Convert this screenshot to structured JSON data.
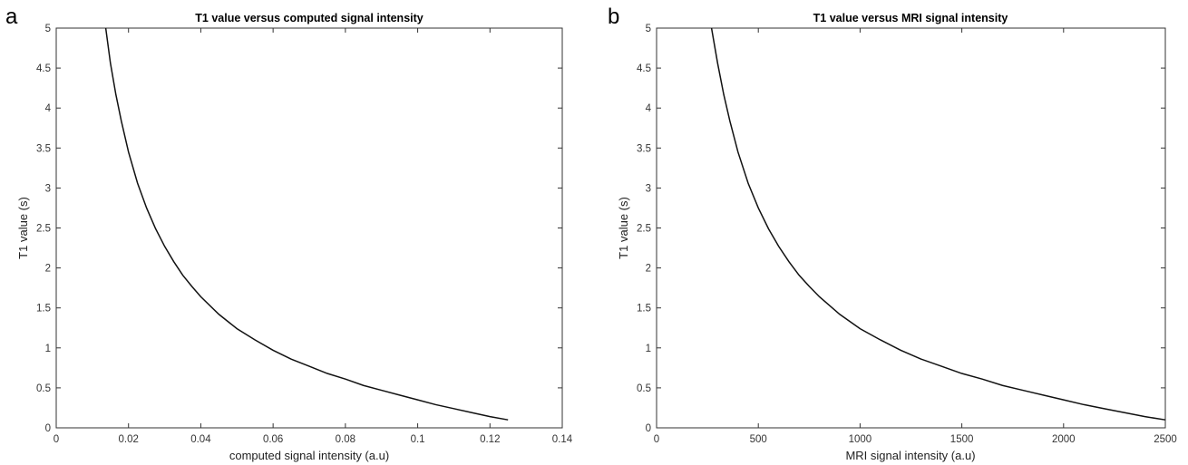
{
  "chart_data": [
    {
      "type": "line",
      "panel_label": "a",
      "title": "T1 value versus computed signal intensity",
      "xlabel": "computed signal intensity (a.u)",
      "ylabel": "T1 value (s)",
      "xlim": [
        0,
        0.14
      ],
      "ylim": [
        0,
        5
      ],
      "xticks": [
        0,
        0.02,
        0.04,
        0.06,
        0.08,
        0.1,
        0.12,
        0.14
      ],
      "xtick_labels": [
        "0",
        "0.02",
        "0.04",
        "0.06",
        "0.08",
        "0.1",
        "0.12",
        "0.14"
      ],
      "yticks": [
        0,
        0.5,
        1,
        1.5,
        2,
        2.5,
        3,
        3.5,
        4,
        4.5,
        5
      ],
      "ytick_labels": [
        "0",
        "0.5",
        "1",
        "1.5",
        "2",
        "2.5",
        "3",
        "3.5",
        "4",
        "4.5",
        "5"
      ],
      "grid": false,
      "line_color": "#111111",
      "series": [
        {
          "x": [
            0.0137,
            0.015,
            0.0165,
            0.018,
            0.02,
            0.0225,
            0.025,
            0.0275,
            0.03,
            0.0325,
            0.035,
            0.0375,
            0.04,
            0.045,
            0.05,
            0.055,
            0.06,
            0.065,
            0.07,
            0.075,
            0.08,
            0.085,
            0.09,
            0.095,
            0.1,
            0.105,
            0.11,
            0.115,
            0.12,
            0.125
          ],
          "y": [
            5.0,
            4.56,
            4.17,
            3.84,
            3.45,
            3.06,
            2.75,
            2.49,
            2.27,
            2.08,
            1.91,
            1.77,
            1.64,
            1.42,
            1.24,
            1.1,
            0.97,
            0.86,
            0.77,
            0.68,
            0.61,
            0.53,
            0.47,
            0.41,
            0.35,
            0.29,
            0.24,
            0.19,
            0.14,
            0.1
          ]
        }
      ]
    },
    {
      "type": "line",
      "panel_label": "b",
      "title": "T1 value versus MRI signal intensity",
      "xlabel": "MRI signal intensity (a.u)",
      "ylabel": "T1 value (s)",
      "xlim": [
        0,
        2500
      ],
      "ylim": [
        0,
        5
      ],
      "xticks": [
        0,
        500,
        1000,
        1500,
        2000,
        2500
      ],
      "xtick_labels": [
        "0",
        "500",
        "1000",
        "1500",
        "2000",
        "2500"
      ],
      "yticks": [
        0,
        0.5,
        1,
        1.5,
        2,
        2.5,
        3,
        3.5,
        4,
        4.5,
        5
      ],
      "ytick_labels": [
        "0",
        "0.5",
        "1",
        "1.5",
        "2",
        "2.5",
        "3",
        "3.5",
        "4",
        "4.5",
        "5"
      ],
      "grid": false,
      "line_color": "#111111",
      "series": [
        {
          "x": [
            270,
            300,
            330,
            360,
            400,
            450,
            500,
            550,
            600,
            650,
            700,
            750,
            800,
            900,
            1000,
            1100,
            1200,
            1300,
            1400,
            1500,
            1600,
            1700,
            1800,
            1900,
            2000,
            2100,
            2200,
            2300,
            2400,
            2500
          ],
          "y": [
            5.0,
            4.56,
            4.17,
            3.84,
            3.45,
            3.06,
            2.75,
            2.49,
            2.27,
            2.08,
            1.91,
            1.77,
            1.64,
            1.42,
            1.24,
            1.1,
            0.97,
            0.86,
            0.77,
            0.68,
            0.61,
            0.53,
            0.47,
            0.41,
            0.35,
            0.29,
            0.24,
            0.19,
            0.14,
            0.1
          ]
        }
      ]
    }
  ]
}
